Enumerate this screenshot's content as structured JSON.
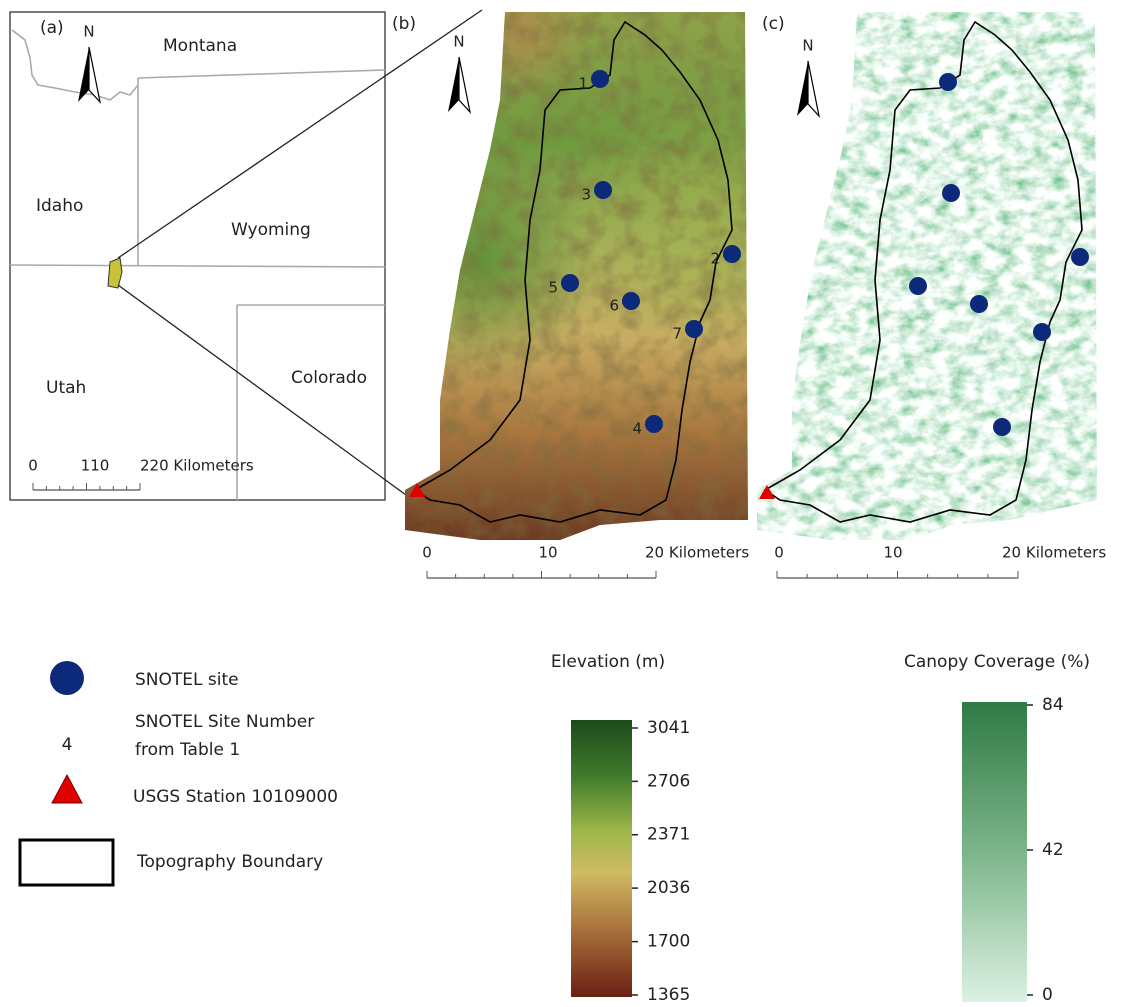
{
  "panel_a": {
    "label": "(a)",
    "north": "N",
    "states": [
      "Montana",
      "Idaho",
      "Wyoming",
      "Utah",
      "Colorado"
    ],
    "scale_labels": [
      "0",
      "110",
      "220 Kilometers"
    ]
  },
  "panel_b": {
    "label": "(b)",
    "north": "N",
    "site_numbers": [
      "1",
      "2",
      "3",
      "4",
      "5",
      "6",
      "7"
    ],
    "scale_labels": [
      "0",
      "10",
      "20 Kilometers"
    ]
  },
  "panel_c": {
    "label": "(c)",
    "north": "N",
    "scale_labels": [
      "0",
      "10",
      "20 Kilometers"
    ]
  },
  "legend": {
    "items": [
      {
        "label": "SNOTEL site"
      },
      {
        "symbol": "4",
        "label": [
          "SNOTEL Site Number",
          "from Table 1"
        ]
      },
      {
        "label": "USGS Station 10109000"
      },
      {
        "label": "Topography Boundary"
      }
    ]
  },
  "elevation_bar": {
    "title": "Elevation (m)",
    "ticks": [
      3041,
      2706,
      2371,
      2036,
      1700,
      1365
    ]
  },
  "canopy_bar": {
    "title": "Canopy Coverage (%)",
    "ticks": [
      84,
      42,
      0
    ]
  }
}
